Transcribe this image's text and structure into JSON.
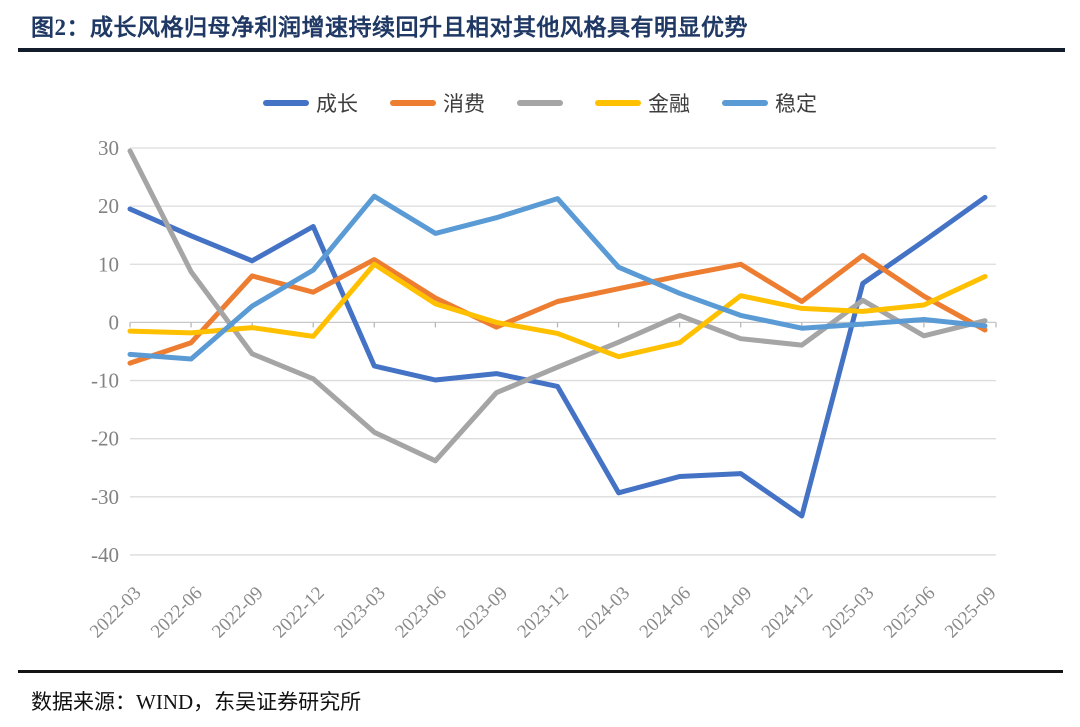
{
  "page": {
    "title": "图2：成长风格归母净利润增速持续回升且相对其他风格具有明显优势",
    "source_note": "数据来源：WIND，东吴证券研究所"
  },
  "chart_data": {
    "type": "line",
    "title": "成长风格归母净利润增速持续回升且相对其他风格具有明显优势",
    "categories": [
      "2022-03",
      "2022-06",
      "2022-09",
      "2022-12",
      "2023-03",
      "2023-06",
      "2023-09",
      "2023-12",
      "2024-03",
      "2024-06",
      "2024-09",
      "2024-12",
      "2025-03",
      "2025-06",
      "2025-09"
    ],
    "series": [
      {
        "id": "growth",
        "name": "成长",
        "color": "#4472C4",
        "values": [
          19.5,
          14.9,
          10.6,
          16.5,
          -7.5,
          -9.9,
          -8.8,
          -11.0,
          -29.3,
          -26.5,
          -26.0,
          -33.3,
          6.7,
          14.0,
          21.5
        ]
      },
      {
        "id": "consumption",
        "name": "消费",
        "color": "#ED7D31",
        "values": [
          -7.0,
          -3.5,
          8.0,
          5.2,
          10.8,
          4.2,
          -0.8,
          3.6,
          5.8,
          8.0,
          10.0,
          3.6,
          11.5,
          4.5,
          -1.3
        ]
      },
      {
        "id": "unlabeled-gray",
        "name": "",
        "color": "#A5A5A5",
        "values": [
          29.5,
          8.7,
          -5.4,
          -9.7,
          -18.9,
          -23.8,
          -12.1,
          -7.7,
          -3.4,
          1.2,
          -2.8,
          -3.9,
          3.8,
          -2.3,
          0.3
        ]
      },
      {
        "id": "finance",
        "name": "金融",
        "color": "#FFC000",
        "values": [
          -1.5,
          -1.8,
          -0.9,
          -2.4,
          10.0,
          3.2,
          0.0,
          -1.9,
          -5.9,
          -3.5,
          4.6,
          2.4,
          1.9,
          3.0,
          7.9
        ]
      },
      {
        "id": "stability",
        "name": "稳定",
        "color": "#5B9BD5",
        "values": [
          -5.5,
          -6.3,
          2.8,
          9.0,
          21.7,
          15.3,
          18.0,
          21.3,
          9.5,
          5.0,
          1.2,
          -1.0,
          -0.3,
          0.5,
          -0.6
        ]
      }
    ],
    "ylim": [
      -40,
      30
    ],
    "y_ticks": [
      30,
      20,
      10,
      0,
      -10,
      -20,
      -30,
      -40
    ],
    "xlabel": "",
    "ylabel": "",
    "grid": "horizontal",
    "legend_position": "top",
    "x_label_rotation": -45
  }
}
